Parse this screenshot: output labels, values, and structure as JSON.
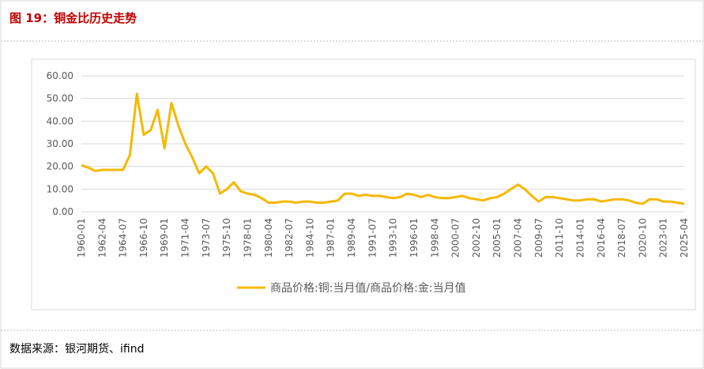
{
  "title": "图 19：铜金比历史走势",
  "source": "数据来源：银河期货、ifind",
  "chart_data": {
    "type": "line",
    "categories": [
      "1960-01",
      null,
      null,
      "1962-04",
      null,
      null,
      "1964-07",
      null,
      null,
      "1966-10",
      null,
      null,
      "1969-01",
      null,
      null,
      "1971-04",
      null,
      null,
      "1973-07",
      null,
      null,
      "1975-10",
      null,
      null,
      "1978-01",
      null,
      null,
      "1980-04",
      null,
      null,
      "1982-07",
      null,
      null,
      "1984-10",
      null,
      null,
      "1987-01",
      null,
      null,
      "1989-04",
      null,
      null,
      "1991-07",
      null,
      null,
      "1993-10",
      null,
      null,
      "1996-01",
      null,
      null,
      "1998-04",
      null,
      null,
      "2000-07",
      null,
      null,
      "2002-10",
      null,
      null,
      "2005-01",
      null,
      null,
      "2007-04",
      null,
      null,
      "2009-07",
      null,
      null,
      "2011-10",
      null,
      null,
      "2014-01",
      null,
      null,
      "2016-04",
      null,
      null,
      "2018-07",
      null,
      null,
      "2020-10",
      null,
      null,
      "2023-01",
      null,
      null,
      "2025-04"
    ],
    "series": [
      {
        "name": "商品价格:铜:当月值/商品价格:金:当月值",
        "color": "#f5b800",
        "values": [
          20.5,
          19.5,
          18,
          18.5,
          18.5,
          18.5,
          18.5,
          25,
          52,
          34,
          36,
          45,
          28,
          48,
          38,
          30,
          24,
          17,
          20,
          17,
          8,
          10,
          13,
          9,
          8,
          7.5,
          6,
          4,
          4,
          4.5,
          4.5,
          4,
          4.5,
          4.5,
          4,
          4,
          4.5,
          5,
          8,
          8,
          7,
          7.5,
          7,
          7,
          6.5,
          6,
          6.5,
          8,
          7.5,
          6.5,
          7.5,
          6.5,
          6,
          6,
          6.5,
          7,
          6,
          5.5,
          5,
          6,
          6.5,
          8,
          10,
          12,
          10,
          7,
          4.5,
          6.5,
          6.5,
          6,
          5.5,
          5,
          5,
          5.5,
          5.5,
          4.5,
          5,
          5.5,
          5.5,
          5,
          4,
          3.5,
          5.5,
          5.5,
          4.5,
          4.5,
          4,
          3.5
        ]
      }
    ],
    "ylim": [
      0,
      60
    ],
    "yticks": [
      {
        "value": 0,
        "label": "0.00"
      },
      {
        "value": 10,
        "label": "10.00"
      },
      {
        "value": 20,
        "label": "20.00"
      },
      {
        "value": 30,
        "label": "30.00"
      },
      {
        "value": 40,
        "label": "40.00"
      },
      {
        "value": 50,
        "label": "50.00"
      },
      {
        "value": 60,
        "label": "60.00"
      }
    ],
    "grid": true,
    "legend": "bottom"
  }
}
